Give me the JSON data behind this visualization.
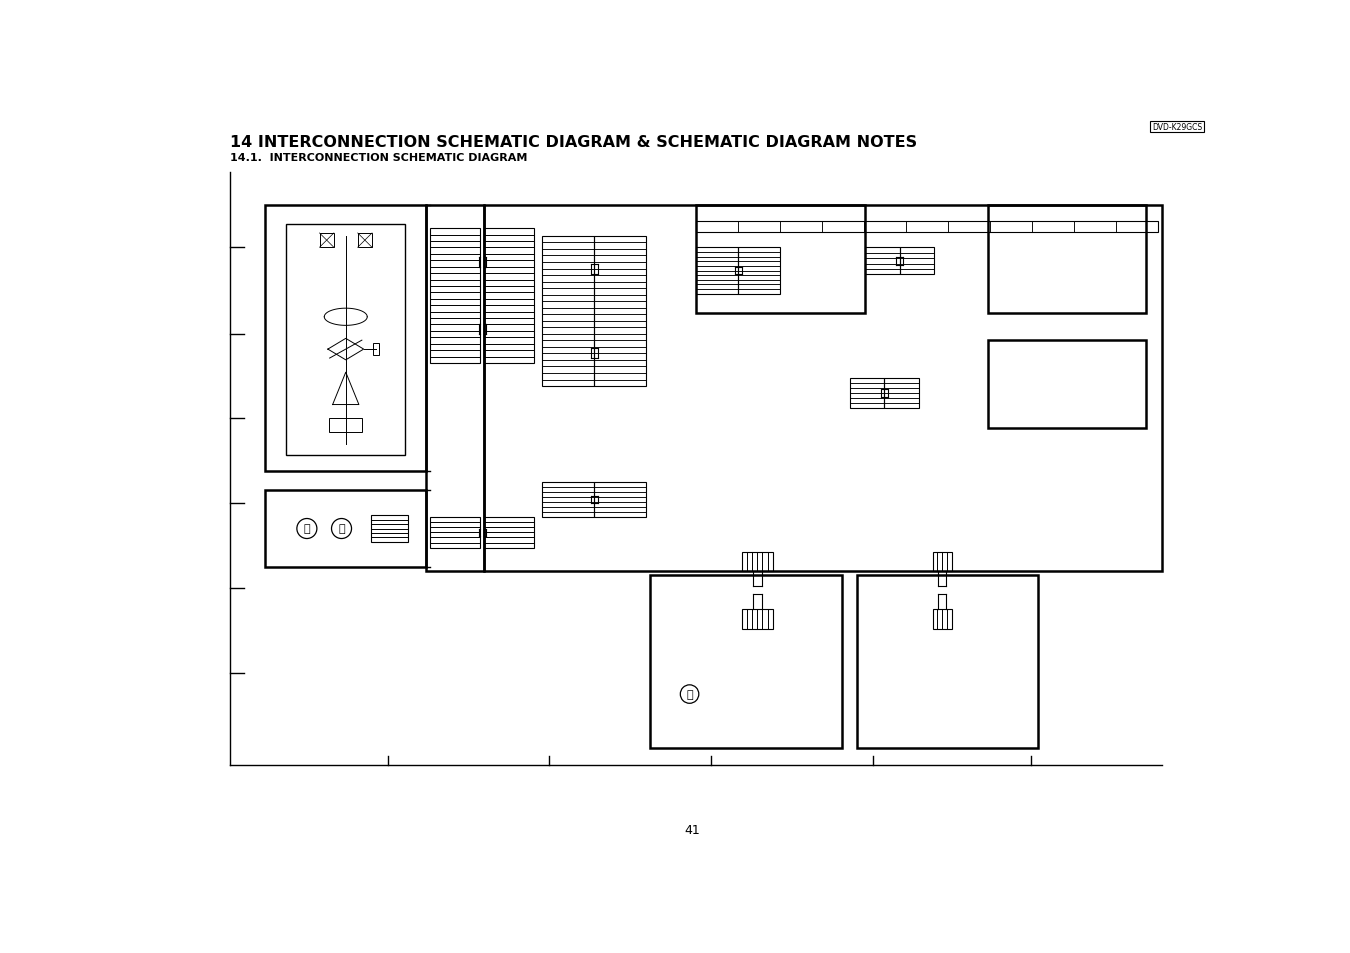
{
  "title": "14 INTERCONNECTION SCHEMATIC DIAGRAM & SCHEMATIC DIAGRAM NOTES",
  "subtitle": "14.1.  INTERCONNECTION SCHEMATIC DIAGRAM",
  "page_number": "41",
  "model_label": "DVD-K29GCS",
  "bg_color": "#ffffff",
  "line_color": "#000000",
  "fig_width": 13.5,
  "fig_height": 9.54
}
